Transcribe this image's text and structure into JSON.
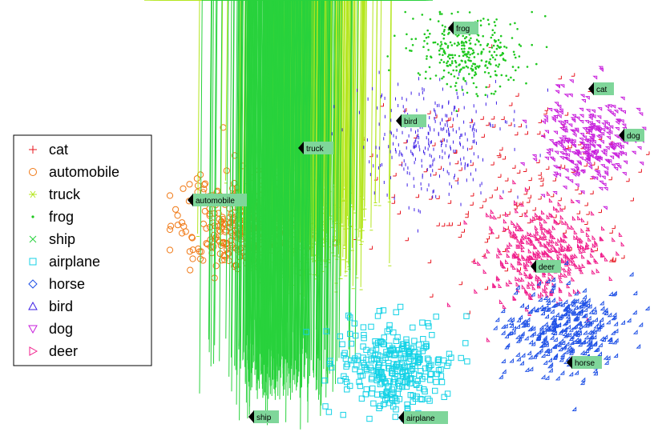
{
  "chart_data": {
    "type": "scatter",
    "title": "",
    "xlabel": "",
    "ylabel": "",
    "axes_visible": false,
    "grid": false,
    "legend_placement": "left",
    "series": [
      {
        "name": "cat",
        "marker": "plus",
        "color": "#e8141e"
      },
      {
        "name": "automobile",
        "marker": "circle",
        "color": "#f07814"
      },
      {
        "name": "truck",
        "marker": "asterisk",
        "color": "#b4e61e"
      },
      {
        "name": "frog",
        "marker": "dot",
        "color": "#1ec81e"
      },
      {
        "name": "ship",
        "marker": "x",
        "color": "#28d23c"
      },
      {
        "name": "airplane",
        "marker": "square",
        "color": "#14d2e6"
      },
      {
        "name": "horse",
        "marker": "diamond",
        "color": "#1e50e6"
      },
      {
        "name": "bird",
        "marker": "triangle-up",
        "color": "#3c1ee6"
      },
      {
        "name": "dog",
        "marker": "triangle-down",
        "color": "#c81edc"
      },
      {
        "name": "deer",
        "marker": "triangle-right",
        "color": "#f01e8c"
      }
    ],
    "cluster_labels": [
      {
        "text": "frog"
      },
      {
        "text": "cat"
      },
      {
        "text": "bird"
      },
      {
        "text": "dog"
      },
      {
        "text": "truck"
      },
      {
        "text": "automobile"
      },
      {
        "text": "deer"
      },
      {
        "text": "horse"
      },
      {
        "text": "ship"
      },
      {
        "text": "airplane"
      }
    ]
  }
}
